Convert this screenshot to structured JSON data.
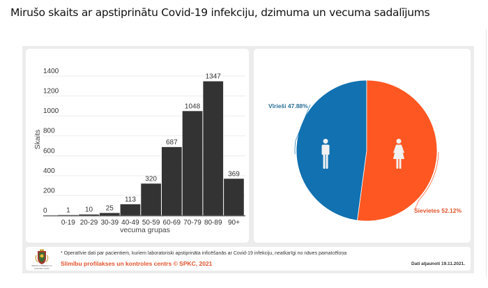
{
  "page": {
    "title": "Mirušo skaits ar apstiprinātu Covid-19 infekciju, dzimuma un vecuma sadalījums"
  },
  "chart_data": [
    {
      "type": "bar",
      "title": "",
      "xlabel": "vecuma grupas",
      "ylabel": "Skaits",
      "categories": [
        "0-19",
        "20-29",
        "30-39",
        "40-49",
        "50-59",
        "60-69",
        "70-79",
        "80-89",
        "90+"
      ],
      "values": [
        1,
        10,
        25,
        113,
        320,
        687,
        1048,
        1347,
        369
      ],
      "value_labels": [
        "1",
        "10",
        "25",
        "113",
        "320",
        "687",
        "1048",
        "1347",
        "369"
      ],
      "yticks": [
        0,
        200,
        400,
        600,
        800,
        1000,
        1200,
        1400
      ],
      "ytick_labels": [
        "0",
        "200",
        "400",
        "600",
        "800",
        "1000",
        "1200",
        "1400"
      ],
      "ylim": [
        0,
        1400
      ],
      "grid": true,
      "bar_color": "#333333"
    },
    {
      "type": "pie",
      "title": "",
      "slices": [
        {
          "name": "Vīrieši",
          "value": 47.88,
          "label": "Vīrieši 47.88%",
          "color": "#1271b0",
          "icon": "male-icon"
        },
        {
          "name": "Sievietes",
          "value": 52.12,
          "label": "Sievietes 52.12%",
          "color": "#ff5722",
          "icon": "female-icon"
        }
      ],
      "label_colors": {
        "Vīrieši": "#2a6f98",
        "Sievietes": "#e2532d"
      }
    }
  ],
  "footer": {
    "note": "* Operatīvie dati par pacientiem, kuriem laboratoriski apstiprināta inficēšanās ar Covid-19 infekciju, neatkarīgi no nāves pamatcēloņa",
    "org": "Slimību profilakses un kontroles centrs © SPKC, 2021",
    "updated": "Dati atjaunoti 19.11.2021.",
    "logo_caption": "Slimību profilakses un kontroles centrs"
  }
}
